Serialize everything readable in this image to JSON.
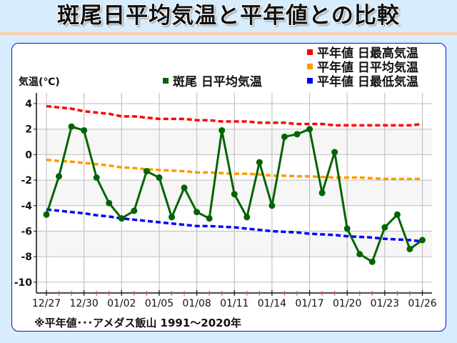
{
  "title": "斑尾日平均気温と平年値との比較",
  "legend": {
    "observed": {
      "label": "斑尾 日平均気温",
      "color": "#006400"
    },
    "normal_max": {
      "label": "平年値 日最高気温",
      "color": "#ff0000"
    },
    "normal_mean": {
      "label": "平年値 日平均気温",
      "color": "#ff9900"
    },
    "normal_min": {
      "label": "平年値 日最低気温",
      "color": "#0000ff"
    }
  },
  "ylabel": "気温(℃)",
  "footnote": "※平年値･･･アメダス飯山 1991〜2020年",
  "chart_data": {
    "type": "line",
    "title": "斑尾日平均気温と平年値との比較",
    "xlabel": "",
    "ylabel": "気温(℃)",
    "ylim": [
      -11,
      5
    ],
    "yticks": [
      4,
      2,
      0,
      -2,
      -4,
      -6,
      -8,
      -10
    ],
    "grid": true,
    "legend_position": "top",
    "x": [
      "12/27",
      "12/28",
      "12/29",
      "12/30",
      "12/31",
      "01/01",
      "01/02",
      "01/03",
      "01/04",
      "01/05",
      "01/06",
      "01/07",
      "01/08",
      "01/09",
      "01/10",
      "01/11",
      "01/12",
      "01/13",
      "01/14",
      "01/15",
      "01/16",
      "01/17",
      "01/18",
      "01/19",
      "01/20",
      "01/21",
      "01/22",
      "01/23",
      "01/24",
      "01/25",
      "01/26"
    ],
    "xtick_labels": [
      "12/27",
      "12/30",
      "01/02",
      "01/05",
      "01/08",
      "01/11",
      "01/14",
      "01/17",
      "01/20",
      "01/23",
      "01/26"
    ],
    "series": [
      {
        "name": "斑尾 日平均気温",
        "color": "#006400",
        "style": "solid-markers",
        "values": [
          -4.7,
          -1.7,
          2.2,
          1.9,
          -1.8,
          -3.8,
          -5.0,
          -4.4,
          -1.3,
          -1.8,
          -4.9,
          -2.6,
          -4.5,
          -5.0,
          1.9,
          -3.1,
          -4.9,
          -0.6,
          -4.0,
          1.4,
          1.6,
          2.0,
          -3.0,
          0.2,
          -5.8,
          -7.8,
          -8.4,
          -5.7,
          -4.7,
          -7.4,
          -6.7
        ]
      },
      {
        "name": "平年値 日最高気温",
        "color": "#ff0000",
        "style": "dashed",
        "values": [
          3.8,
          3.7,
          3.6,
          3.4,
          3.3,
          3.2,
          3.0,
          3.0,
          2.9,
          2.8,
          2.8,
          2.8,
          2.7,
          2.7,
          2.6,
          2.6,
          2.6,
          2.5,
          2.5,
          2.5,
          2.4,
          2.4,
          2.4,
          2.3,
          2.3,
          2.3,
          2.3,
          2.3,
          2.3,
          2.3,
          2.4
        ]
      },
      {
        "name": "平年値 日平均気温",
        "color": "#ff9900",
        "style": "dashed",
        "values": [
          -0.4,
          -0.5,
          -0.55,
          -0.65,
          -0.75,
          -0.85,
          -1.0,
          -1.05,
          -1.15,
          -1.2,
          -1.25,
          -1.3,
          -1.4,
          -1.4,
          -1.45,
          -1.5,
          -1.5,
          -1.55,
          -1.65,
          -1.65,
          -1.7,
          -1.7,
          -1.75,
          -1.8,
          -1.8,
          -1.8,
          -1.85,
          -1.9,
          -1.9,
          -1.9,
          -1.9
        ]
      },
      {
        "name": "平年値 日最低気温",
        "color": "#0000ff",
        "style": "dashed",
        "values": [
          -4.3,
          -4.4,
          -4.5,
          -4.6,
          -4.75,
          -4.85,
          -5.0,
          -5.1,
          -5.2,
          -5.3,
          -5.4,
          -5.5,
          -5.6,
          -5.6,
          -5.65,
          -5.7,
          -5.8,
          -5.9,
          -6.0,
          -6.05,
          -6.1,
          -6.2,
          -6.25,
          -6.3,
          -6.4,
          -6.45,
          -6.5,
          -6.6,
          -6.65,
          -6.7,
          -6.8
        ]
      }
    ]
  }
}
